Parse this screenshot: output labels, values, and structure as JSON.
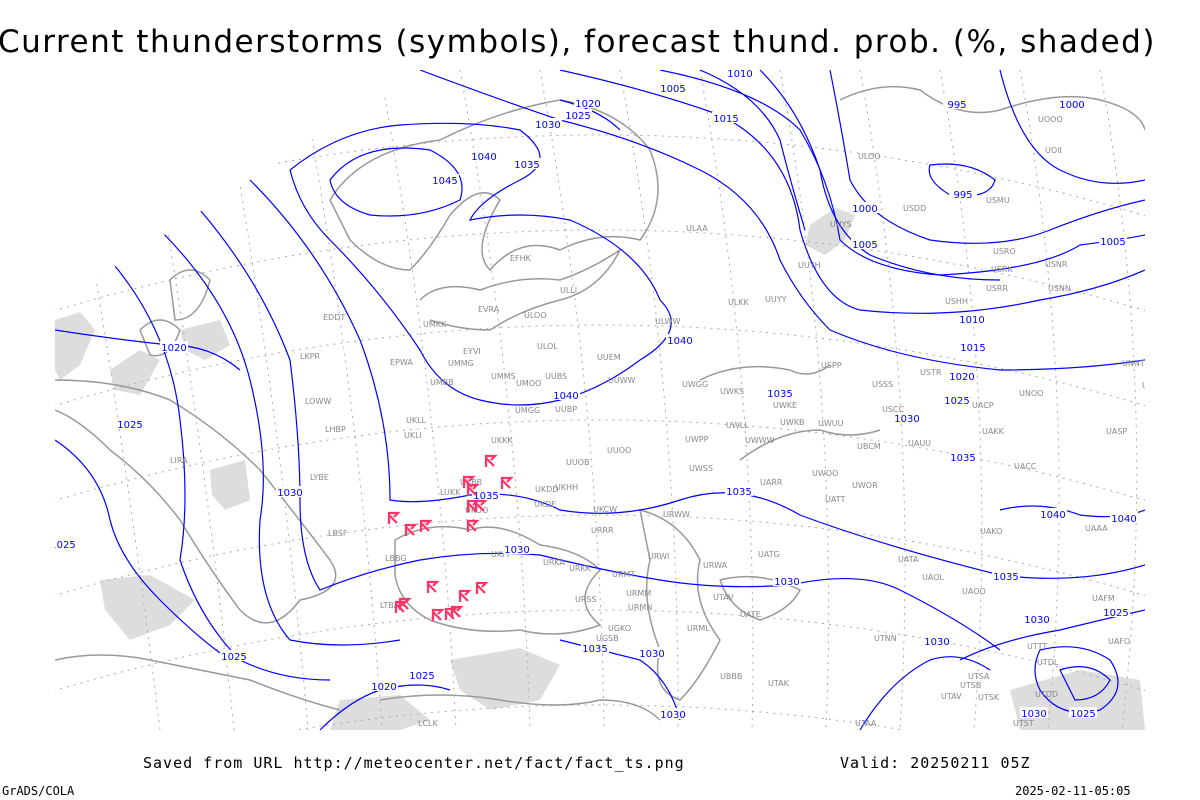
{
  "title": "Current thunderstorms (symbols), forecast thund. prob. (%, shaded)",
  "footer": {
    "saved_from": "Saved from URL http://meteocenter.net/fact/fact_ts.png",
    "valid": "Valid: 20250211 05Z",
    "software": "GrADS/COLA",
    "timestamp": "2025-02-11-05:05"
  },
  "colors": {
    "isobar": "#0000ff",
    "coastline": "#999999",
    "thunderstorm_symbol": "#ff3366",
    "probability_shading": "#dddddd",
    "graticule": "#aaaaaa"
  },
  "layers": {
    "isobars": "sea-level pressure contours (hPa)",
    "symbols": "current thunderstorms",
    "shading": "forecast thunderstorm probability (%)"
  },
  "isobar_labels": [
    "1005",
    "1010",
    "1020",
    "1025",
    "1030",
    "1015",
    "995",
    "1000",
    "1040",
    "1035",
    "1045",
    "995",
    "1000",
    "1005",
    "1005",
    "1010",
    "1015",
    "1020",
    "1025",
    "1030",
    "1035",
    "1040",
    "1040",
    "1035",
    "1035",
    "1035",
    "1030",
    "1030",
    "1035",
    "1040",
    "1040",
    "1030",
    "1030",
    "1025",
    "1020",
    "1025",
    "1030",
    "1025",
    "1025",
    "1020",
    "1025",
    "1030",
    "1030",
    "1025",
    "1035",
    "1030"
  ],
  "station_labels": [
    "UOOO",
    "UOII",
    "ULOO",
    "USDD",
    "USMU",
    "UUYS",
    "UUYH",
    "ULAA",
    "USRO",
    "USRK",
    "USNR",
    "USRR",
    "USNN",
    "USHH",
    "UUYY",
    "ULKK",
    "ULWW",
    "EFHK",
    "ULLI",
    "EVRA",
    "ULOO",
    "UMKK",
    "EDDT",
    "EYVI",
    "ULOL",
    "UUEM",
    "EPWA",
    "UMMG",
    "UMMS",
    "UMOO",
    "UUBS",
    "UUWW",
    "UWGG",
    "USPP",
    "USSS",
    "USTR",
    "UNNT",
    "UNBB",
    "UWKS",
    "UWKE",
    "UMBB",
    "LKPR",
    "LOWW",
    "UMGG",
    "UUBP",
    "USCC",
    "UNOO",
    "UACP",
    "UKLL",
    "UKLI",
    "LHBP",
    "UWLL",
    "UWKB",
    "UWUU",
    "UAKK",
    "UASP",
    "UKKK",
    "UWPP",
    "UWWW",
    "UBCM",
    "UAUU",
    "LIRA",
    "UUOO",
    "UUOB",
    "UWSS",
    "UACC",
    "UWOO",
    "UARR",
    "UWOR",
    "UKHH",
    "LYBE",
    "LUKK",
    "UKDD",
    "UATT",
    "UKDE",
    "UKCW",
    "URWW",
    "URRR",
    "UAKO",
    "UAAA",
    "LBSF",
    "UKOO",
    "LBBG",
    "UKFF",
    "URKA",
    "URKK",
    "URWI",
    "UATG",
    "UATA",
    "URMT",
    "URWA",
    "UAOL",
    "UAOO",
    "URMM",
    "LTBA",
    "URSS",
    "URMN",
    "UTAV",
    "UATE",
    "URML",
    "UTNN",
    "UGKO",
    "UGSB",
    "UTTT",
    "UTDL",
    "UBBB",
    "UTAK",
    "UTSA",
    "UTSB",
    "UTAV",
    "UTSK",
    "UTDD",
    "LCLK",
    "UTAA",
    "UTST",
    "UKBB",
    "UAFM",
    "UAFO"
  ]
}
